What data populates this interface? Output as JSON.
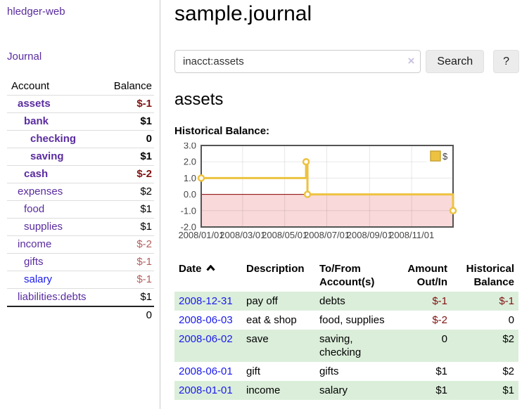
{
  "sidebar": {
    "brand": "hledger-web",
    "nav": {
      "journal": "Journal"
    },
    "accounts_table": {
      "headers": {
        "account": "Account",
        "balance": "Balance"
      },
      "rows": [
        {
          "name": "assets",
          "depth": 1,
          "bold": true,
          "balance": "$-1",
          "balance_style": "neg-strong"
        },
        {
          "name": "bank",
          "depth": 2,
          "bold": true,
          "balance": "$1",
          "balance_style": "pos-strong"
        },
        {
          "name": "checking",
          "depth": 3,
          "bold": true,
          "balance": "0",
          "balance_style": "pos-strong"
        },
        {
          "name": "saving",
          "depth": 3,
          "bold": true,
          "balance": "$1",
          "balance_style": "pos-strong"
        },
        {
          "name": "cash",
          "depth": 2,
          "bold": true,
          "balance": "$-2",
          "balance_style": "neg-strong"
        },
        {
          "name": "expenses",
          "depth": 1,
          "bold": false,
          "balance": "$2",
          "balance_style": "pos"
        },
        {
          "name": "food",
          "depth": 2,
          "bold": false,
          "balance": "$1",
          "balance_style": "pos"
        },
        {
          "name": "supplies",
          "depth": 2,
          "bold": false,
          "balance": "$1",
          "balance_style": "pos"
        },
        {
          "name": "income",
          "depth": 1,
          "bold": false,
          "balance": "$-2",
          "balance_style": "neg-muted"
        },
        {
          "name": "gifts",
          "depth": 2,
          "bold": false,
          "balance": "$-1",
          "balance_style": "neg-muted"
        },
        {
          "name": "salary",
          "depth": 2,
          "bold": false,
          "balance": "$-1",
          "balance_style": "neg-muted",
          "link_color": "blue"
        },
        {
          "name": "liabilities:debts",
          "depth": 1,
          "bold": false,
          "balance": "$1",
          "balance_style": "pos"
        }
      ],
      "total": "0"
    }
  },
  "header": {
    "title": "sample.journal"
  },
  "search": {
    "query": "inacct:assets",
    "clear_icon": "×",
    "button": "Search",
    "help_button": "?"
  },
  "account_page": {
    "heading": "assets",
    "chart_label": "Historical Balance:"
  },
  "chart_data": {
    "type": "line",
    "style": "step",
    "title": "Historical Balance",
    "legend": "$",
    "legend_position": "top-right",
    "grid": true,
    "x_range": [
      "2008-01-01",
      "2008-12-31"
    ],
    "y_range": [
      -2,
      3
    ],
    "y_ticks": [
      {
        "v": 3,
        "label": "3.0"
      },
      {
        "v": 2,
        "label": "2.0"
      },
      {
        "v": 1,
        "label": "1.0"
      },
      {
        "v": 0,
        "label": "0.0"
      },
      {
        "v": -1,
        "label": "-1.0"
      },
      {
        "v": -2,
        "label": "-2.0"
      }
    ],
    "x_ticks": [
      {
        "date": "2008-01-01",
        "label": "2008/01/01"
      },
      {
        "date": "2008-03-01",
        "label": "2008/03/01"
      },
      {
        "date": "2008-05-01",
        "label": "2008/05/01"
      },
      {
        "date": "2008-07-01",
        "label": "2008/07/01"
      },
      {
        "date": "2008-09-01",
        "label": "2008/09/01"
      },
      {
        "date": "2008-11-01",
        "label": "2008/11/01"
      }
    ],
    "series": [
      {
        "name": "$",
        "color": "#edc240",
        "points": [
          [
            "2008-01-01",
            1
          ],
          [
            "2008-06-01",
            2
          ],
          [
            "2008-06-03",
            0
          ],
          [
            "2008-12-31",
            -1
          ]
        ]
      }
    ],
    "negative_fill": "#f9d9d9",
    "zero_line_color": "#8b0000"
  },
  "register": {
    "headers": {
      "date": "Date",
      "description": "Description",
      "accounts": "To/From Account(s)",
      "amount": "Amount Out/In",
      "balance": "Historical Balance"
    },
    "sort": {
      "column": "date",
      "direction": "ascending"
    },
    "rows": [
      {
        "date": "2008-12-31",
        "description": "pay off",
        "accounts": [
          "debts"
        ],
        "amount": "$-1",
        "amount_neg": true,
        "balance": "$-1",
        "balance_neg": true
      },
      {
        "date": "2008-06-03",
        "description": "eat & shop",
        "accounts": [
          "food",
          "supplies"
        ],
        "amount": "$-2",
        "amount_neg": true,
        "balance": "0",
        "balance_neg": false
      },
      {
        "date": "2008-06-02",
        "description": "save",
        "accounts": [
          "saving",
          "checking"
        ],
        "amount": "0",
        "amount_neg": false,
        "balance": "$2",
        "balance_neg": false
      },
      {
        "date": "2008-06-01",
        "description": "gift",
        "accounts": [
          "gifts"
        ],
        "amount": "$1",
        "amount_neg": false,
        "balance": "$2",
        "balance_neg": false
      },
      {
        "date": "2008-01-01",
        "description": "income",
        "accounts": [
          "salary"
        ],
        "amount": "$1",
        "amount_neg": false,
        "balance": "$1",
        "balance_neg": false
      }
    ]
  }
}
